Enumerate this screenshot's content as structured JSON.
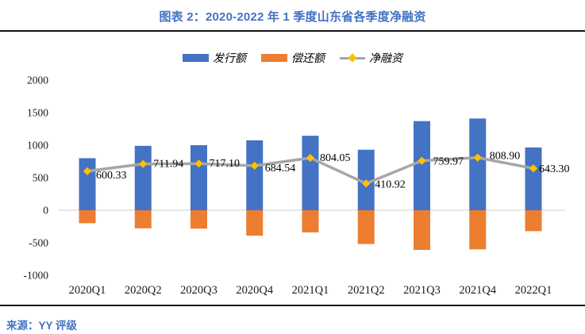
{
  "title": "图表 2：2020-2022 年 1 季度山东省各季度净融资",
  "source": "来源：YY 评级",
  "colors": {
    "issuance_bar": "#4472C4",
    "repayment_bar": "#ED7D31",
    "net_line": "#A6A6A6",
    "net_marker": "#FFC000",
    "zero_gridline": "#D9D9D9",
    "title_text": "#4472C4",
    "axis_text": "#1a1a1a"
  },
  "legend": {
    "issuance_label": "发行额",
    "repayment_label": "偿还额",
    "net_label": "净融资"
  },
  "chart_data": {
    "type": "bar",
    "subtype": "bar-line-combo",
    "categories": [
      "2020Q1",
      "2020Q2",
      "2020Q3",
      "2020Q4",
      "2021Q1",
      "2021Q2",
      "2021Q3",
      "2021Q4",
      "2022Q1"
    ],
    "series": [
      {
        "name": "发行额",
        "type": "bar",
        "color": "#4472C4",
        "values": [
          800,
          990,
          1000,
          1075,
          1145,
          930,
          1370,
          1410,
          965
        ]
      },
      {
        "name": "偿还额",
        "type": "bar",
        "color": "#ED7D31",
        "values": [
          -199.67,
          -278.06,
          -282.9,
          -390.46,
          -340.95,
          -519.08,
          -610.03,
          -601.1,
          -321.7
        ]
      },
      {
        "name": "净融资",
        "type": "line",
        "color": "#A6A6A6",
        "marker": "diamond",
        "marker_color": "#FFC000",
        "values": [
          600.33,
          711.94,
          717.1,
          684.54,
          804.05,
          410.92,
          759.97,
          808.9,
          643.3
        ],
        "data_labels": [
          "600.33",
          "711.94",
          "717.10",
          "684.54",
          "804.05",
          "410.92",
          "759.97",
          "808.90",
          "643.30"
        ]
      }
    ],
    "ylim": [
      -1000,
      2000
    ],
    "yticks": [
      "2000",
      "1500",
      "1000",
      "500",
      "0",
      "-500",
      "-1000"
    ],
    "ytick_values": [
      2000,
      1500,
      1000,
      500,
      0,
      -500,
      -1000
    ],
    "grid": "zero-line-only",
    "legend_position": "top-center",
    "xlabel": "",
    "ylabel": ""
  }
}
